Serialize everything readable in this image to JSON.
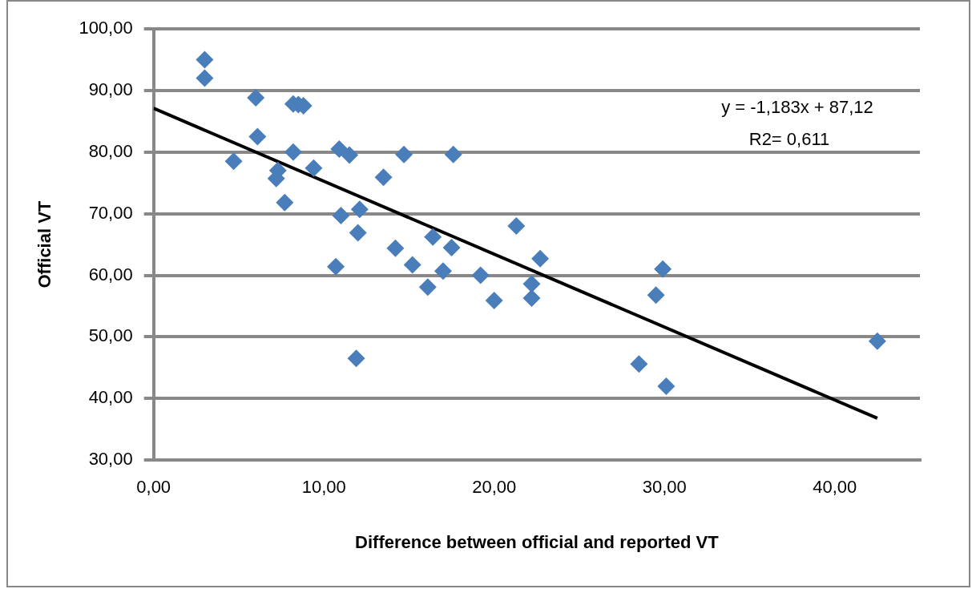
{
  "chart_data": {
    "type": "scatter",
    "xlabel": "Difference between official and reported VT",
    "ylabel": "Official VT",
    "xlim": [
      0,
      45
    ],
    "xticks": [
      {
        "value": 0,
        "label": "0,00"
      },
      {
        "value": 10,
        "label": "10,00"
      },
      {
        "value": 20,
        "label": "20,00"
      },
      {
        "value": 30,
        "label": "30,00"
      },
      {
        "value": 40,
        "label": "40,00"
      }
    ],
    "ylim": [
      30,
      100
    ],
    "yticks": [
      {
        "value": 30,
        "label": "30,00"
      },
      {
        "value": 40,
        "label": "40,00"
      },
      {
        "value": 50,
        "label": "50,00"
      },
      {
        "value": 60,
        "label": "60,00"
      },
      {
        "value": 70,
        "label": "70,00"
      },
      {
        "value": 80,
        "label": "80,00"
      },
      {
        "value": 90,
        "label": "90,00"
      },
      {
        "value": 100,
        "label": "100,00"
      }
    ],
    "grid": "y",
    "legend": false,
    "marker": "diamond",
    "series": [
      {
        "type": "scatter",
        "color": "#4a7ebb",
        "x": [
          3.0,
          3.0,
          6.0,
          6.1,
          4.7,
          8.2,
          8.5,
          8.8,
          8.2,
          7.3,
          7.2,
          7.7,
          9.4,
          10.9,
          11.5,
          13.5,
          14.7,
          17.6,
          11.0,
          12.1,
          12.0,
          10.7,
          11.9,
          14.2,
          15.2,
          16.1,
          16.4,
          17.5,
          17.0,
          19.2,
          20.0,
          21.3,
          22.2,
          22.2,
          22.7,
          29.9,
          29.5,
          28.5,
          30.1,
          42.5
        ],
        "values": [
          95.0,
          92.0,
          88.8,
          82.5,
          78.5,
          87.8,
          87.7,
          87.5,
          80.0,
          77.0,
          75.7,
          71.8,
          77.4,
          80.5,
          79.5,
          75.9,
          79.6,
          79.6,
          69.7,
          70.7,
          66.9,
          61.4,
          46.5,
          64.4,
          61.7,
          58.1,
          66.2,
          64.5,
          60.7,
          60.0,
          55.9,
          68.0,
          58.6,
          56.3,
          62.7,
          61.0,
          56.8,
          45.6,
          42.0,
          49.3
        ]
      },
      {
        "type": "line",
        "color": "#000000",
        "marker": "none",
        "line_style": "solid",
        "x": [
          0,
          42.5
        ],
        "values": [
          87.1,
          36.8
        ]
      }
    ],
    "annotations": [
      "y = -1,183x + 87,12",
      "R2= 0,611"
    ]
  }
}
